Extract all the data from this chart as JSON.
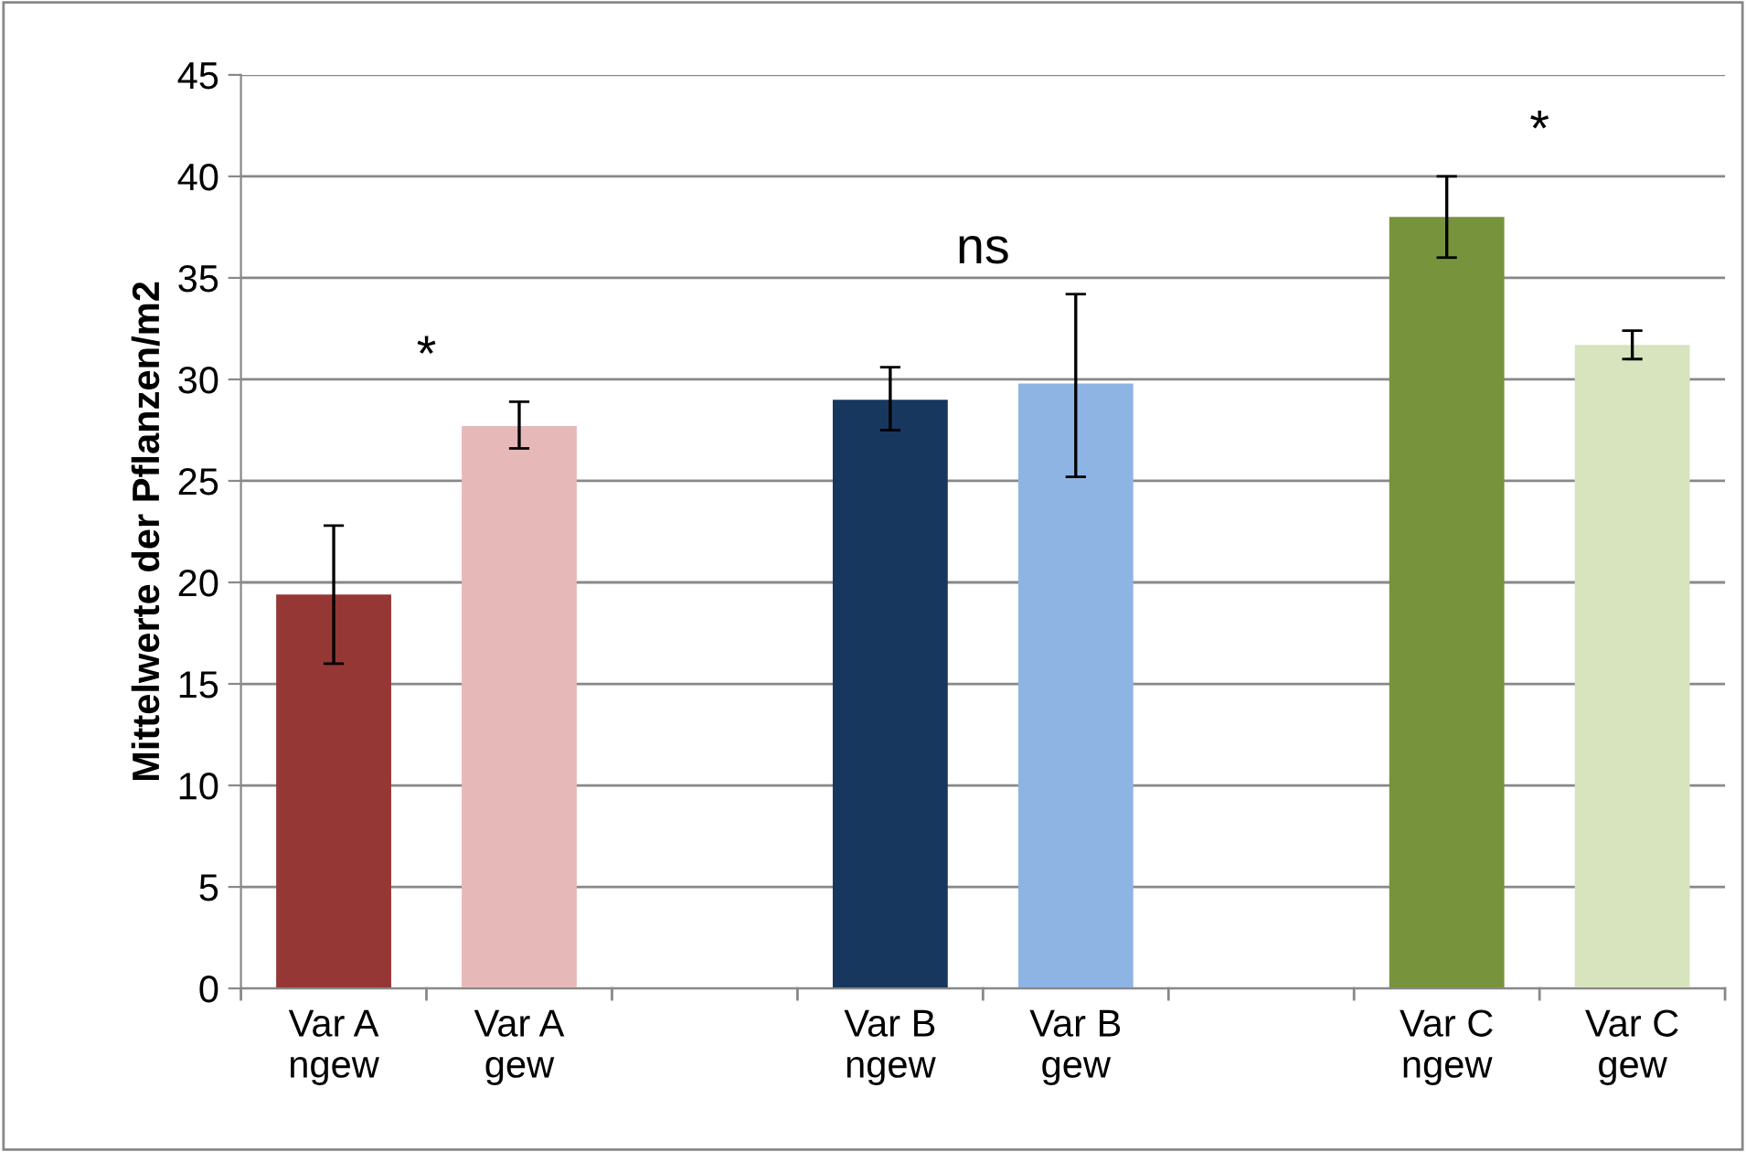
{
  "chart_data": {
    "type": "bar",
    "categories": [
      "Var A\nngew",
      "Var A\ngew",
      null,
      "Var B\nngew",
      "Var B\ngew",
      null,
      "Var C\nngew",
      "Var C\ngew"
    ],
    "values": [
      19.4,
      27.7,
      null,
      29.0,
      29.8,
      null,
      38.0,
      31.7
    ],
    "colors": [
      "#953735",
      "#e6b9b8",
      "#ffffff",
      "#17375e",
      "#8eb4e3",
      "#ffffff",
      "#77933c",
      "#d7e4bd"
    ],
    "errors": [
      [
        16.0,
        22.8
      ],
      [
        26.6,
        28.9
      ],
      null,
      [
        27.5,
        30.6
      ],
      [
        25.2,
        34.2
      ],
      null,
      [
        36.0,
        40.0
      ],
      [
        31.0,
        32.4
      ]
    ],
    "ylabel": "Mittelwerte der Pflanzen/m2",
    "ylim": [
      0,
      45
    ],
    "yticks": [
      0,
      5,
      10,
      15,
      20,
      25,
      30,
      35,
      40,
      45
    ],
    "annotations": [
      "*",
      "ns",
      "*"
    ],
    "grid": "y",
    "legend": false
  }
}
